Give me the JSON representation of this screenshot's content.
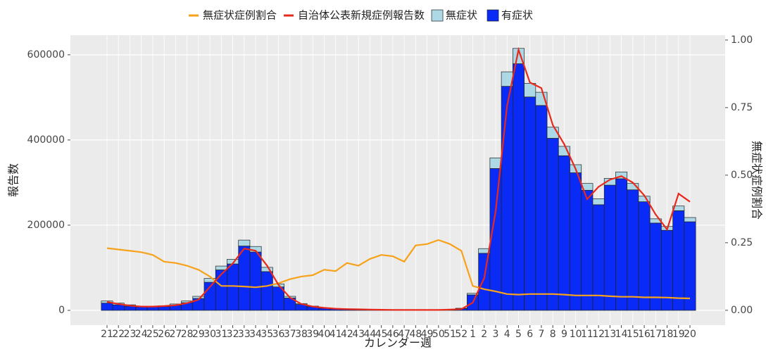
{
  "chart_data": {
    "type": "bar",
    "x_label": "カレンダー週",
    "y_label": "報告数",
    "y2_label": "無症状症例割合",
    "categories": [
      "21",
      "22",
      "23",
      "24",
      "25",
      "26",
      "27",
      "28",
      "29",
      "30",
      "31",
      "32",
      "33",
      "34",
      "35",
      "36",
      "37",
      "38",
      "39",
      "40",
      "41",
      "42",
      "43",
      "44",
      "45",
      "46",
      "47",
      "48",
      "49",
      "50",
      "51",
      "52",
      "1",
      "2",
      "3",
      "4",
      "5",
      "6",
      "7",
      "8",
      "9",
      "10",
      "11",
      "12",
      "13",
      "14",
      "15",
      "16",
      "17",
      "18",
      "19",
      "20"
    ],
    "ylim": [
      -34700,
      646000
    ],
    "yticks": [
      0,
      200000,
      400000,
      600000
    ],
    "y2lim": [
      -0.055,
      1.018
    ],
    "y2ticks": [
      {
        "value": 0,
        "label": "0.00"
      },
      {
        "value": 0.25,
        "label": "0.25"
      },
      {
        "value": 0.5,
        "label": "0.50"
      },
      {
        "value": 0.75,
        "label": "0.75"
      },
      {
        "value": 1,
        "label": "1.00"
      }
    ],
    "grid": true,
    "series": [
      {
        "name": "無症状症例割合",
        "type": "line",
        "axis": "y2",
        "color": "#f7a21b",
        "values": [
          0.23,
          0.225,
          0.22,
          0.215,
          0.205,
          0.18,
          0.175,
          0.165,
          0.15,
          0.125,
          0.09,
          0.09,
          0.088,
          0.085,
          0.09,
          0.1,
          0.115,
          0.125,
          0.13,
          0.15,
          0.145,
          0.175,
          0.165,
          0.19,
          0.205,
          0.2,
          0.18,
          0.24,
          0.245,
          0.26,
          0.245,
          0.22,
          0.09,
          0.078,
          0.07,
          0.06,
          0.058,
          0.06,
          0.06,
          0.06,
          0.058,
          0.055,
          0.055,
          0.055,
          0.052,
          0.05,
          0.05,
          0.048,
          0.048,
          0.047,
          0.045,
          0.044
        ]
      },
      {
        "name": "自治体公表新規症例報告数",
        "type": "line",
        "color": "#e8291c",
        "values": [
          20000,
          15000,
          11000,
          9000,
          9000,
          10000,
          12000,
          17000,
          25000,
          55000,
          85000,
          110000,
          145000,
          140000,
          105000,
          60000,
          30000,
          15000,
          9000,
          6000,
          4000,
          3000,
          2500,
          2000,
          1500,
          1200,
          1000,
          1000,
          1000,
          1000,
          2000,
          3000,
          18000,
          76000,
          233000,
          480000,
          612000,
          535000,
          522000,
          435000,
          390000,
          332000,
          261000,
          290000,
          307000,
          315000,
          300000,
          270000,
          225000,
          190000,
          274000,
          255000
        ]
      },
      {
        "name": "無症状",
        "type": "bar",
        "color": "#add8e6",
        "values": [
          5000,
          4000,
          3000,
          2000,
          2000,
          2000,
          3000,
          4000,
          5000,
          9000,
          9000,
          11000,
          14000,
          13000,
          10000,
          7000,
          4000,
          2000,
          1300,
          900,
          600,
          500,
          400,
          400,
          300,
          240,
          180,
          240,
          245,
          260,
          370,
          1100,
          3600,
          11000,
          25000,
          34000,
          36000,
          32000,
          31000,
          26000,
          22000,
          19000,
          16000,
          14000,
          16000,
          16000,
          15000,
          13000,
          10000,
          9000,
          11000,
          10000
        ]
      },
      {
        "name": "有症状",
        "type": "bar",
        "color": "#0a2bf5",
        "values": [
          17000,
          13000,
          10000,
          8000,
          8000,
          9000,
          12000,
          18000,
          28000,
          66000,
          95000,
          109000,
          151000,
          137000,
          91000,
          55000,
          29000,
          14000,
          8700,
          5100,
          3400,
          2500,
          2100,
          1600,
          1200,
          960,
          820,
          760,
          755,
          740,
          1130,
          3900,
          36400,
          134000,
          333000,
          526000,
          579000,
          501000,
          481000,
          404000,
          363000,
          323000,
          282000,
          248000,
          294000,
          309000,
          283000,
          255000,
          205000,
          188000,
          234000,
          208000
        ]
      }
    ]
  }
}
